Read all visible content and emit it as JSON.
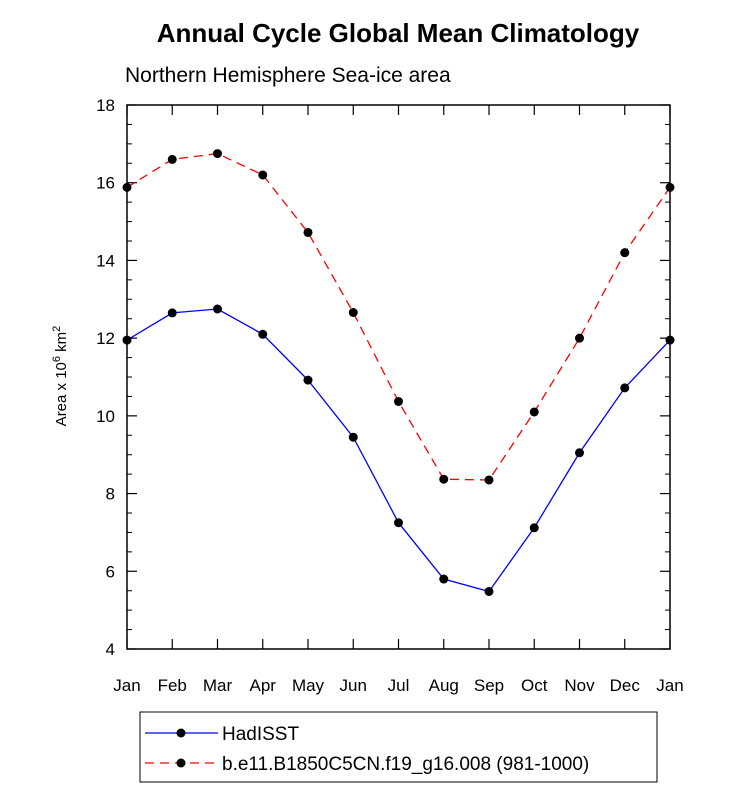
{
  "chart_data": {
    "type": "line",
    "title": "Annual Cycle Global Mean Climatology",
    "subtitle": "Northern Hemisphere Sea-ice area",
    "ylabel_parts": {
      "pre": "Area x 10",
      "exp": "6",
      "mid": " km",
      "exp2": "2"
    },
    "categories": [
      "Jan",
      "Feb",
      "Mar",
      "Apr",
      "May",
      "Jun",
      "Jul",
      "Aug",
      "Sep",
      "Oct",
      "Nov",
      "Dec",
      "Jan"
    ],
    "ylim": [
      4,
      18
    ],
    "yticks": [
      4,
      6,
      8,
      10,
      12,
      14,
      16,
      18
    ],
    "grid": false,
    "legend_position": "bottom",
    "series": [
      {
        "name": "HadISST",
        "color": "#0000ff",
        "dash": "solid",
        "marker": "filled-circle",
        "values": [
          11.95,
          12.65,
          12.75,
          12.1,
          10.92,
          9.45,
          7.25,
          5.8,
          5.48,
          7.12,
          9.05,
          10.72,
          11.95
        ]
      },
      {
        "name": "b.e11.B1850C5CN.f19_g16.008 (981-1000)",
        "color": "#ff0000",
        "dash": "dashed",
        "marker": "filled-circle",
        "values": [
          15.88,
          16.6,
          16.75,
          16.2,
          14.72,
          12.66,
          10.37,
          8.37,
          8.35,
          10.1,
          12.0,
          14.2,
          15.88
        ]
      }
    ]
  }
}
